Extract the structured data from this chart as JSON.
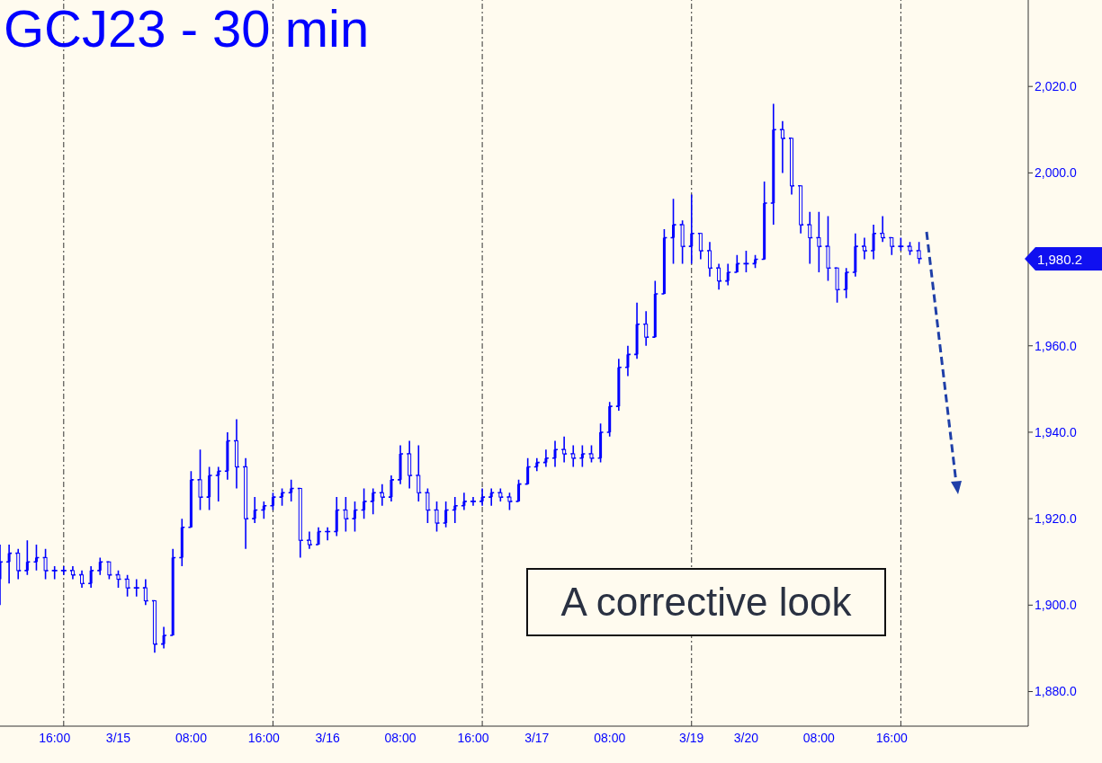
{
  "chart_data": {
    "type": "candlestick",
    "title": "GCJ23 - 30 min",
    "color": "#0000ff",
    "categories": [
      null,
      null,
      null,
      null,
      null,
      null,
      "16:00",
      null,
      null,
      null,
      null,
      null,
      null,
      "3/15",
      null,
      null,
      null,
      null,
      null,
      null,
      null,
      "08:00",
      null,
      null,
      null,
      null,
      null,
      null,
      null,
      "16:00",
      null,
      null,
      null,
      null,
      null,
      null,
      "3/16",
      null,
      null,
      null,
      null,
      null,
      null,
      null,
      "08:00",
      null,
      null,
      null,
      null,
      null,
      null,
      null,
      "16:00",
      null,
      null,
      null,
      null,
      null,
      null,
      "3/17",
      null,
      null,
      null,
      null,
      null,
      null,
      null,
      "08:00",
      null,
      null,
      null,
      null,
      null,
      null,
      null,
      null,
      "3/19",
      null,
      null,
      null,
      null,
      null,
      "3/20",
      null,
      null,
      null,
      null,
      null,
      null,
      null,
      "08:00",
      null,
      null,
      null,
      null,
      null,
      null,
      null,
      "16:00",
      null,
      null,
      null,
      null,
      null,
      null,
      null,
      null,
      null,
      null,
      null,
      null,
      null,
      null,
      null
    ],
    "ohlc": [
      [
        1906,
        1914,
        1900,
        1910
      ],
      [
        1910,
        1914,
        1905,
        1912
      ],
      [
        1912,
        1913,
        1906,
        1908
      ],
      [
        1908,
        1915,
        1907,
        1910
      ],
      [
        1910,
        1914,
        1908,
        1911
      ],
      [
        1911,
        1913,
        1906,
        1908
      ],
      [
        1908,
        1909,
        1906,
        1908
      ],
      [
        1908,
        1909,
        1907,
        1908
      ],
      [
        1908,
        1909,
        1906,
        1907
      ],
      [
        1907,
        1908,
        1904,
        1905
      ],
      [
        1905,
        1909,
        1904,
        1908
      ],
      [
        1908,
        1911,
        1907,
        1910
      ],
      [
        1910,
        1910,
        1906,
        1907
      ],
      [
        1907,
        1908,
        1904,
        1906
      ],
      [
        1906,
        1907,
        1902,
        1904
      ],
      [
        1904,
        1906,
        1902,
        1904
      ],
      [
        1904,
        1906,
        1900,
        1901
      ],
      [
        1901,
        1901,
        1889,
        1891
      ],
      [
        1891,
        1895,
        1890,
        1893
      ],
      [
        1893,
        1913,
        1893,
        1911
      ],
      [
        1911,
        1920,
        1909,
        1918
      ],
      [
        1918,
        1931,
        1918,
        1929
      ],
      [
        1929,
        1936,
        1922,
        1925
      ],
      [
        1925,
        1932,
        1922,
        1930
      ],
      [
        1930,
        1932,
        1924,
        1931
      ],
      [
        1931,
        1940,
        1929,
        1938
      ],
      [
        1938,
        1943,
        1927,
        1932
      ],
      [
        1932,
        1934,
        1913,
        1920
      ],
      [
        1920,
        1925,
        1919,
        1922
      ],
      [
        1922,
        1924,
        1920,
        1923
      ],
      [
        1923,
        1926,
        1922,
        1925
      ],
      [
        1925,
        1927,
        1923,
        1926
      ],
      [
        1926,
        1929,
        1924,
        1927
      ],
      [
        1927,
        1927,
        1911,
        1915
      ],
      [
        1915,
        1917,
        1913,
        1914
      ],
      [
        1914,
        1918,
        1914,
        1917
      ],
      [
        1917,
        1918,
        1915,
        1917
      ],
      [
        1917,
        1925,
        1916,
        1922
      ],
      [
        1922,
        1925,
        1917,
        1920
      ],
      [
        1920,
        1924,
        1917,
        1922
      ],
      [
        1922,
        1927,
        1920,
        1924
      ],
      [
        1924,
        1927,
        1921,
        1926
      ],
      [
        1926,
        1928,
        1923,
        1925
      ],
      [
        1925,
        1930,
        1924,
        1929
      ],
      [
        1929,
        1937,
        1928,
        1935
      ],
      [
        1935,
        1938,
        1927,
        1930
      ],
      [
        1930,
        1937,
        1924,
        1926
      ],
      [
        1926,
        1927,
        1919,
        1922
      ],
      [
        1922,
        1924,
        1917,
        1919
      ],
      [
        1919,
        1924,
        1918,
        1922
      ],
      [
        1922,
        1925,
        1919,
        1923
      ],
      [
        1923,
        1926,
        1922,
        1924
      ],
      [
        1924,
        1925,
        1923,
        1924
      ],
      [
        1924,
        1927,
        1923,
        1925
      ],
      [
        1925,
        1927,
        1923,
        1926
      ],
      [
        1926,
        1927,
        1924,
        1925
      ],
      [
        1925,
        1926,
        1922,
        1924
      ],
      [
        1924,
        1929,
        1924,
        1928
      ],
      [
        1928,
        1934,
        1928,
        1932
      ],
      [
        1932,
        1934,
        1931,
        1933
      ],
      [
        1933,
        1936,
        1932,
        1934
      ],
      [
        1934,
        1938,
        1932,
        1936
      ],
      [
        1936,
        1939,
        1933,
        1935
      ],
      [
        1935,
        1937,
        1932,
        1934
      ],
      [
        1934,
        1937,
        1932,
        1935
      ],
      [
        1935,
        1937,
        1933,
        1934
      ],
      [
        1934,
        1942,
        1933,
        1940
      ],
      [
        1940,
        1947,
        1939,
        1946
      ],
      [
        1946,
        1957,
        1945,
        1955
      ],
      [
        1955,
        1960,
        1953,
        1958
      ],
      [
        1958,
        1970,
        1957,
        1965
      ],
      [
        1965,
        1968,
        1960,
        1962
      ],
      [
        1962,
        1975,
        1962,
        1972
      ],
      [
        1972,
        1987,
        1972,
        1985
      ],
      [
        1985,
        1994,
        1979,
        1988
      ],
      [
        1988,
        1989,
        1979,
        1983
      ],
      [
        1983,
        1995,
        1979,
        1986
      ],
      [
        1986,
        1986,
        1980,
        1982
      ],
      [
        1982,
        1984,
        1976,
        1978
      ],
      [
        1978,
        1979,
        1973,
        1975
      ],
      [
        1975,
        1979,
        1974,
        1977
      ],
      [
        1977,
        1981,
        1977,
        1979
      ],
      [
        1979,
        1982,
        1977,
        1979
      ],
      [
        1979,
        1981,
        1978,
        1980
      ],
      [
        1980,
        1998,
        1980,
        1993
      ],
      [
        1993,
        2016,
        1988,
        2010
      ],
      [
        2010,
        2012,
        2000,
        2008
      ],
      [
        2008,
        2008,
        1995,
        1997
      ],
      [
        1997,
        1997,
        1986,
        1988
      ],
      [
        1988,
        1991,
        1979,
        1985
      ],
      [
        1985,
        1991,
        1977,
        1983
      ],
      [
        1983,
        1990,
        1975,
        1978
      ],
      [
        1978,
        1978,
        1970,
        1973
      ],
      [
        1973,
        1978,
        1971,
        1977
      ],
      [
        1977,
        1986,
        1976,
        1983
      ],
      [
        1983,
        1985,
        1980,
        1982
      ],
      [
        1982,
        1988,
        1980,
        1986
      ],
      [
        1986,
        1990,
        1984,
        1985
      ],
      [
        1985,
        1985,
        1981,
        1983
      ],
      [
        1983,
        1985,
        1982,
        1983
      ],
      [
        1983,
        1984,
        1981,
        1982
      ],
      [
        1982,
        1984,
        1979,
        1980.2
      ],
      null,
      null,
      null,
      null,
      null,
      null,
      null,
      null,
      null,
      null,
      null,
      null
    ],
    "ylim": [
      1872,
      2040
    ],
    "yticks": [
      {
        "value": 1880,
        "label": "1,880.0"
      },
      {
        "value": 1900,
        "label": "1,900.0"
      },
      {
        "value": 1920,
        "label": "1,920.0"
      },
      {
        "value": 1940,
        "label": "1,940.0"
      },
      {
        "value": 1960,
        "label": "1,960.0"
      },
      {
        "value": 1980,
        "label": null
      },
      {
        "value": 2000,
        "label": "2,000.0"
      },
      {
        "value": 2020,
        "label": "2,020.0"
      }
    ],
    "annotations": [
      "A corrective look",
      "1,980.2"
    ]
  }
}
